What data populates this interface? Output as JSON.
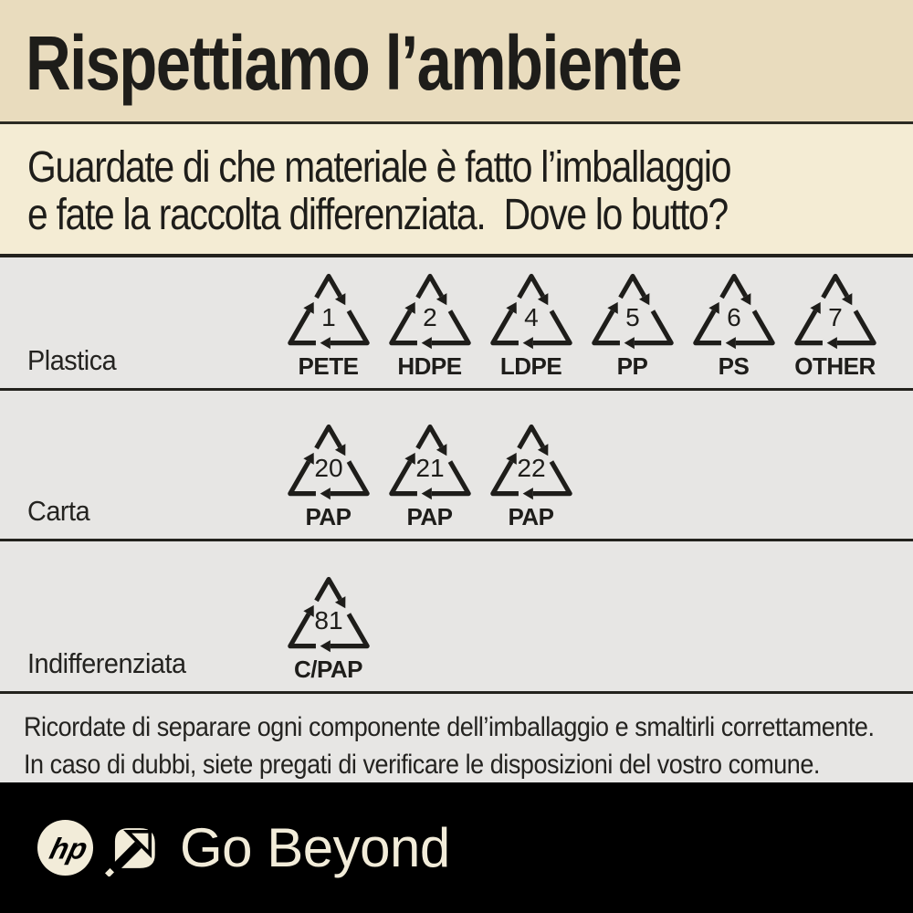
{
  "title": "Rispettiamo l’ambiente",
  "subtitle": {
    "line1": "Guardate di che materiale è fatto l’imballaggio",
    "line2": "e fate la raccolta differenziata.  Dove lo butto?"
  },
  "rows": [
    {
      "label": "Plastica",
      "symbols": [
        {
          "num": "1",
          "code": "PETE"
        },
        {
          "num": "2",
          "code": "HDPE"
        },
        {
          "num": "4",
          "code": "LDPE"
        },
        {
          "num": "5",
          "code": "PP"
        },
        {
          "num": "6",
          "code": "PS"
        },
        {
          "num": "7",
          "code": "OTHER"
        }
      ]
    },
    {
      "label": "Carta",
      "symbols": [
        {
          "num": "20",
          "code": "PAP"
        },
        {
          "num": "21",
          "code": "PAP"
        },
        {
          "num": "22",
          "code": "PAP"
        }
      ]
    },
    {
      "label": "Indifferenziata",
      "symbols": [
        {
          "num": "81",
          "code": "C/PAP"
        }
      ]
    }
  ],
  "note": {
    "line1": "Ricordate di separare ogni componente dell’imballaggio e smaltirli correttamente.",
    "line2": "In caso di dubbi, siete pregati di verificare le disposizioni del vostro comune."
  },
  "footer": {
    "brand": "hp",
    "tagline": "Go Beyond"
  },
  "colors": {
    "ink": "#1e1d1a",
    "band1_bg": "#e9dcbe",
    "band2_bg": "#f4ecd4",
    "row_bg": "#e7e6e4",
    "divider": "#23221d",
    "footer_bg": "#000000",
    "footer_cream": "#f2ecd9"
  }
}
